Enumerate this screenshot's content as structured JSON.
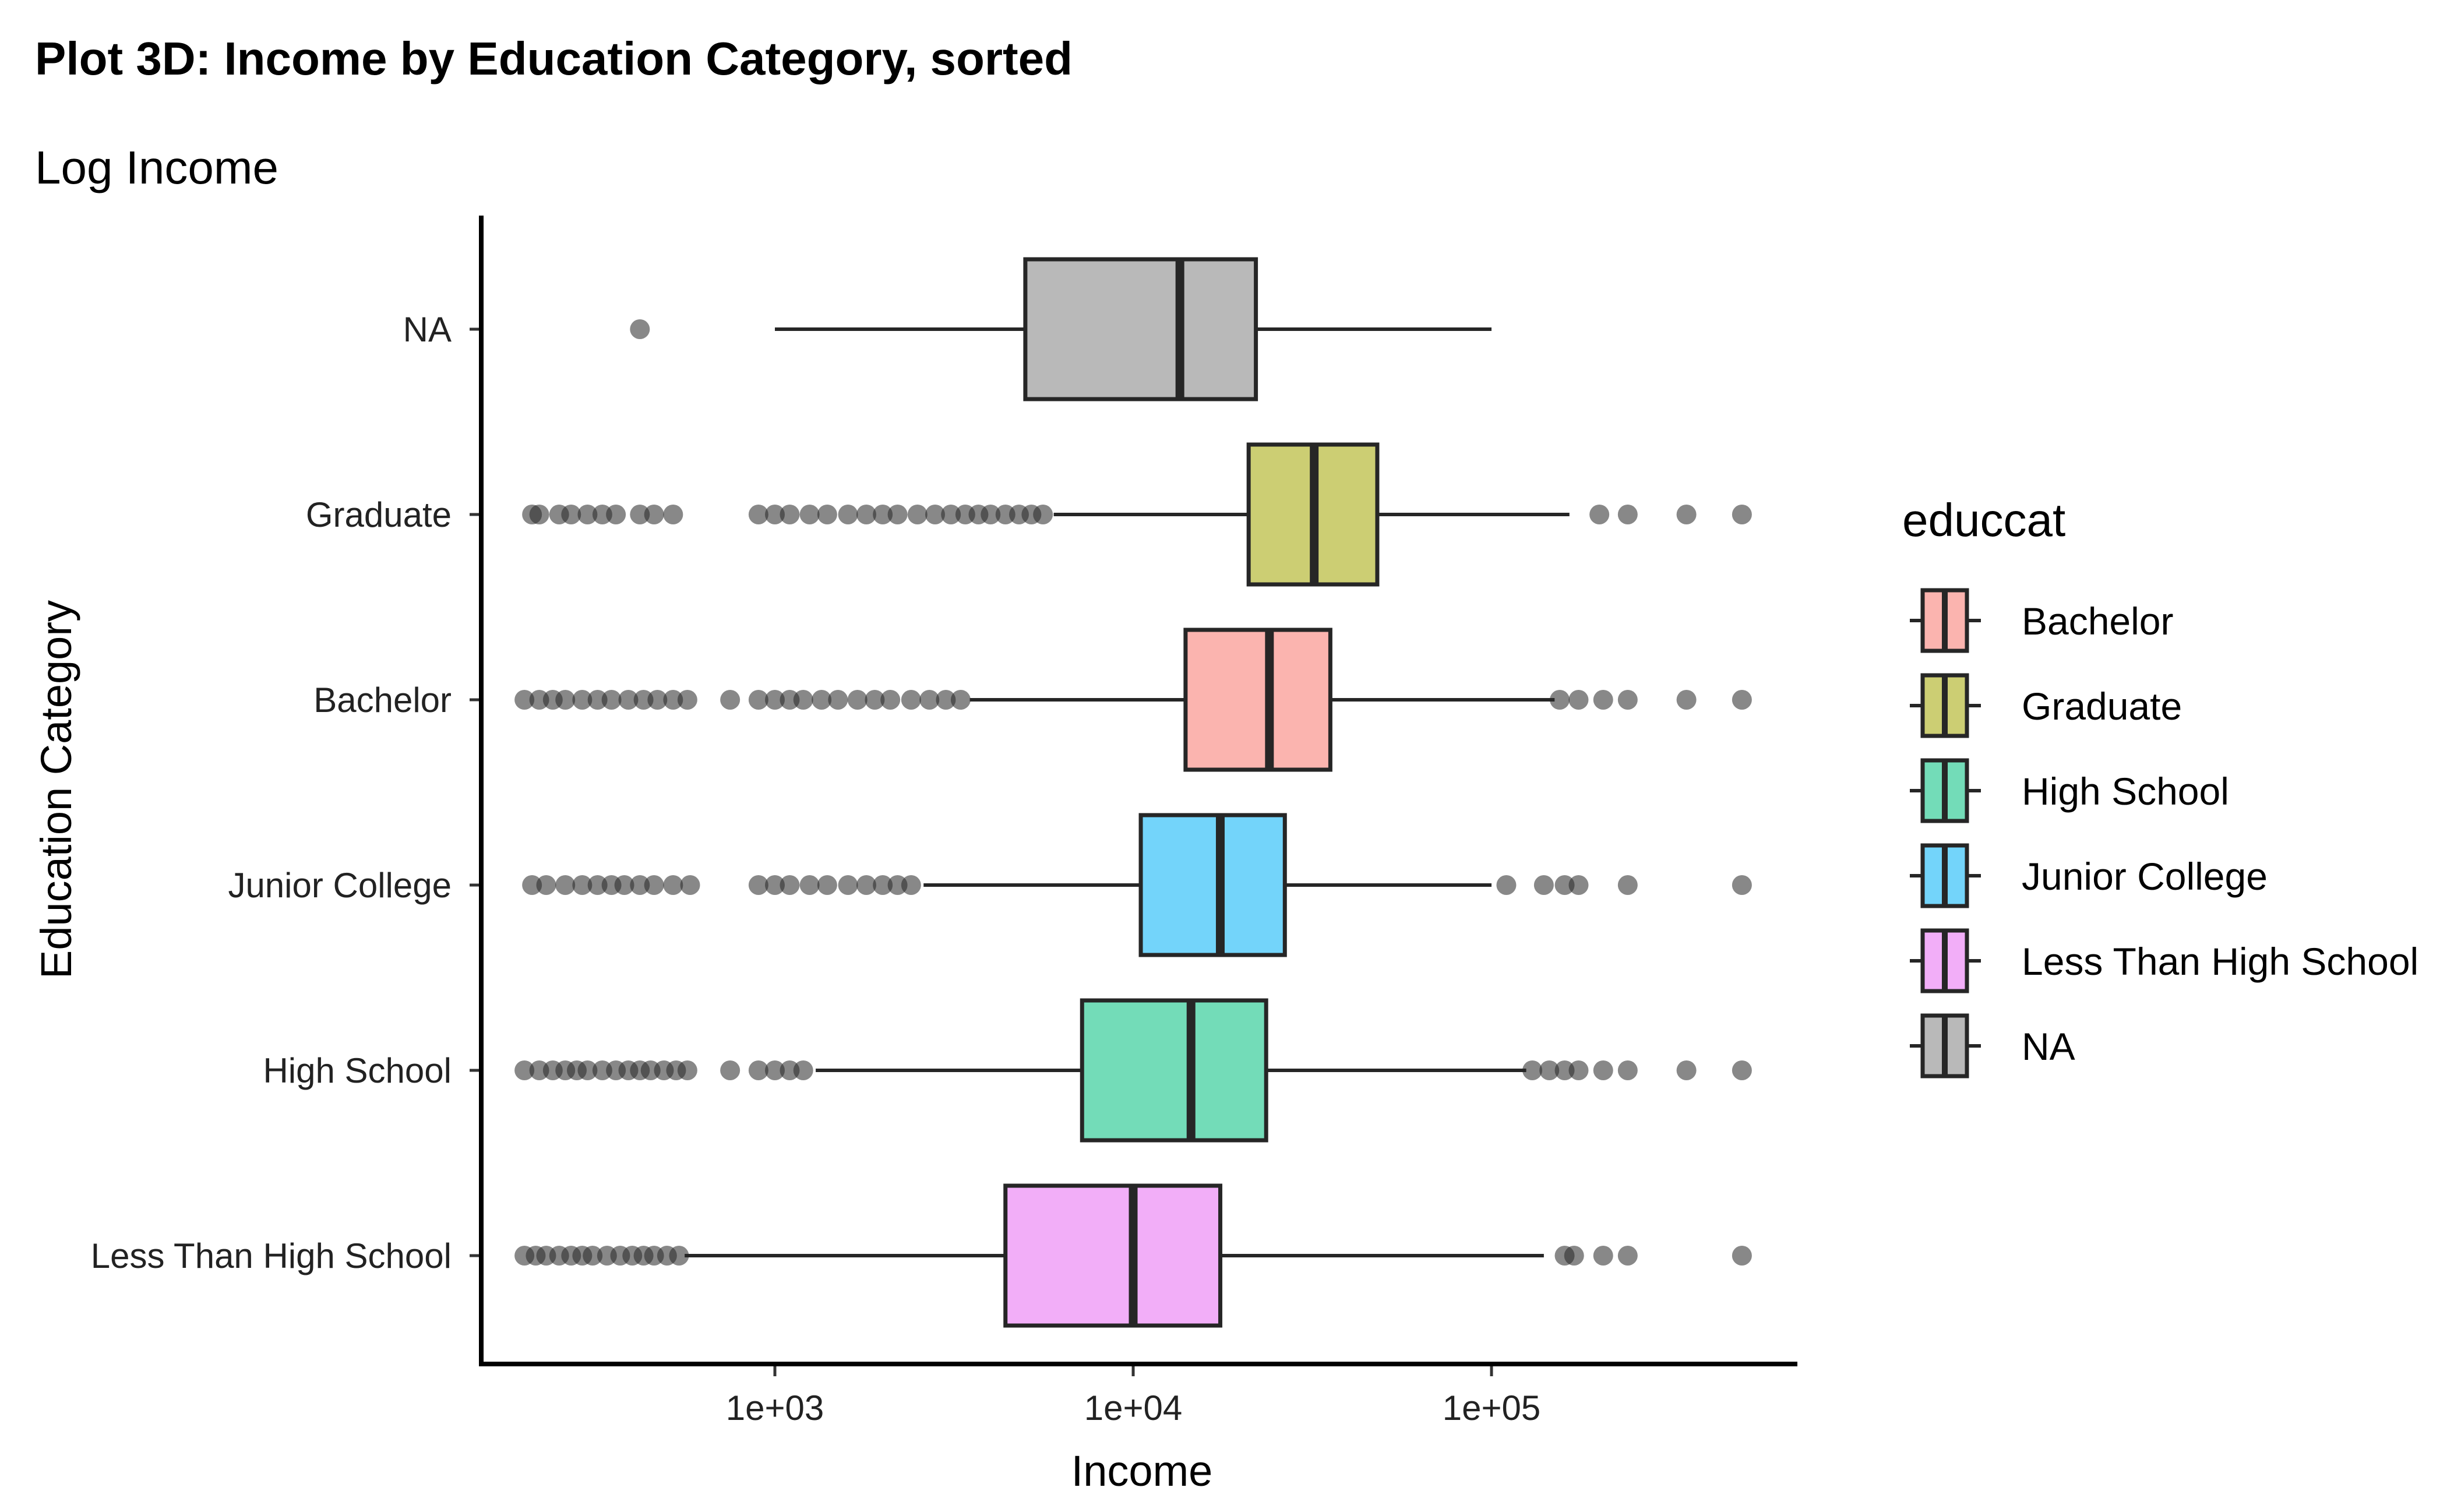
{
  "chart_data": {
    "type": "boxplot",
    "orientation": "horizontal",
    "title": "Plot 3D: Income by Education Category, sorted",
    "subtitle": "Log Income",
    "xlabel": "Income",
    "ylabel": "Education Category",
    "x_scale": "log10",
    "xlim": [
      130,
      800000
    ],
    "x_ticks": [
      1000,
      10000,
      100000
    ],
    "x_tick_labels": [
      "1e+03",
      "1e+04",
      "1e+05"
    ],
    "grid": false,
    "legend": {
      "title": "educcat",
      "position": "right",
      "items": [
        {
          "label": "Bachelor",
          "color": "#F8766D"
        },
        {
          "label": "Graduate",
          "color": "#A3A500"
        },
        {
          "label": "High School",
          "color": "#00BF7D"
        },
        {
          "label": "Junior College",
          "color": "#00B0F6"
        },
        {
          "label": "Less Than High School",
          "color": "#E76BF3"
        },
        {
          "label": "NA",
          "color": "#7F7F7F"
        }
      ]
    },
    "categories": [
      "NA",
      "Graduate",
      "Bachelor",
      "Junior College",
      "High School",
      "Less Than High School"
    ],
    "series": [
      {
        "category": "NA",
        "color": "#7F7F7F",
        "whisker_low": 1000,
        "q1": 5000,
        "median": 13500,
        "q3": 22000,
        "whisker_high": 100000,
        "outliers": [
          420
        ]
      },
      {
        "category": "Graduate",
        "color": "#A3A500",
        "whisker_low": 6000,
        "q1": 21000,
        "median": 32000,
        "q3": 48000,
        "whisker_high": 165000,
        "outliers": [
          210,
          220,
          250,
          270,
          300,
          330,
          360,
          420,
          460,
          520,
          900,
          1000,
          1100,
          1250,
          1400,
          1600,
          1800,
          2000,
          2200,
          2500,
          2800,
          3100,
          3400,
          3700,
          4000,
          4400,
          4800,
          5200,
          5600,
          200000,
          240000,
          350000,
          500000
        ]
      },
      {
        "category": "Bachelor",
        "color": "#F8766D",
        "whisker_low": 3500,
        "q1": 14000,
        "median": 24000,
        "q3": 35500,
        "whisker_high": 150000,
        "outliers": [
          200,
          220,
          240,
          260,
          290,
          320,
          350,
          390,
          430,
          470,
          520,
          570,
          750,
          900,
          1000,
          1100,
          1200,
          1350,
          1500,
          1700,
          1900,
          2100,
          2400,
          2700,
          3000,
          3300,
          155000,
          175000,
          205000,
          240000,
          350000,
          500000
        ]
      },
      {
        "category": "Junior College",
        "color": "#00B0F6",
        "whisker_low": 2600,
        "q1": 10500,
        "median": 17500,
        "q3": 26500,
        "whisker_high": 100000,
        "outliers": [
          210,
          230,
          260,
          290,
          320,
          350,
          380,
          420,
          460,
          520,
          580,
          900,
          1000,
          1100,
          1250,
          1400,
          1600,
          1800,
          2000,
          2200,
          2400,
          110000,
          140000,
          160000,
          175000,
          240000,
          500000
        ]
      },
      {
        "category": "High School",
        "color": "#00BF7D",
        "whisker_low": 1300,
        "q1": 7200,
        "median": 14500,
        "q3": 23500,
        "whisker_high": 125000,
        "outliers": [
          200,
          220,
          240,
          260,
          280,
          300,
          330,
          360,
          390,
          420,
          450,
          490,
          530,
          570,
          750,
          900,
          1000,
          1100,
          1200,
          130000,
          145000,
          160000,
          175000,
          205000,
          240000,
          350000,
          500000
        ]
      },
      {
        "category": "Less Than High School",
        "color": "#E76BF3",
        "whisker_low": 560,
        "q1": 4400,
        "median": 10000,
        "q3": 17500,
        "whisker_high": 140000,
        "outliers": [
          200,
          215,
          230,
          250,
          270,
          290,
          310,
          340,
          370,
          400,
          430,
          460,
          500,
          540,
          160000,
          170000,
          205000,
          240000,
          500000
        ]
      }
    ]
  }
}
